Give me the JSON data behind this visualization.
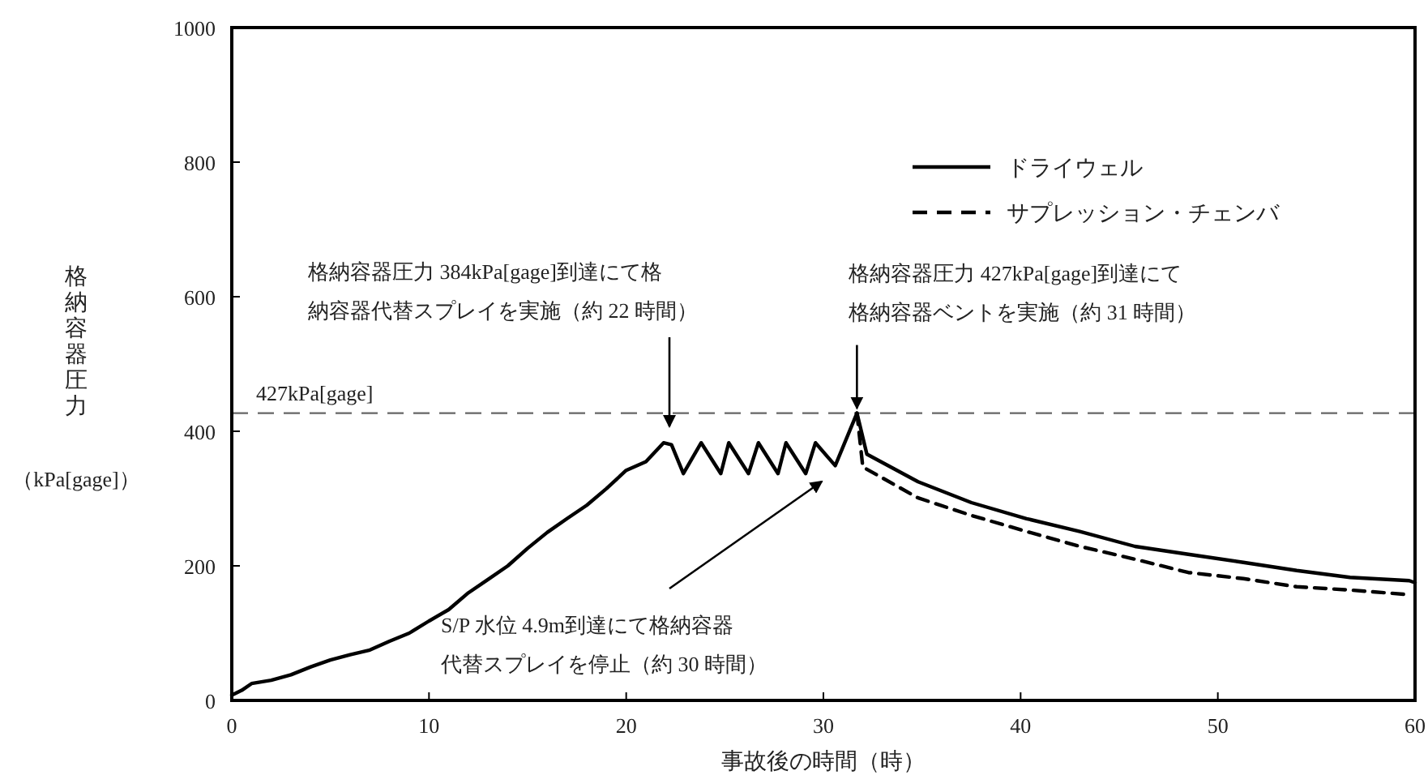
{
  "chart_data": {
    "type": "line",
    "xlabel": "事故後の時間（時）",
    "ylabel": "格納容器圧力（kPa[gage]）",
    "xlim": [
      0,
      60
    ],
    "ylim": [
      0,
      1000
    ],
    "xticks": [
      0,
      10,
      20,
      30,
      40,
      50,
      60
    ],
    "yticks": [
      0,
      200,
      400,
      600,
      800,
      1000
    ],
    "legend": "top right",
    "grid": false,
    "series": [
      {
        "name": "ドライウェル",
        "color": "#000000",
        "line_style": "solid",
        "x": [
          0,
          0.5,
          1,
          2,
          3,
          4,
          5,
          6,
          7,
          8,
          9,
          10,
          11,
          12,
          13,
          14,
          15,
          16,
          17,
          18,
          19,
          20,
          21,
          21.9,
          22.3,
          22.9,
          23.8,
          24.8,
          25.2,
          26.2,
          26.7,
          27.7,
          28.1,
          29.1,
          29.6,
          30.6,
          31.7,
          32.2,
          34.8,
          37.5,
          40.3,
          43,
          45.8,
          48.5,
          51.3,
          54,
          56.7,
          59.7,
          60
        ],
        "values": [
          8,
          15,
          25,
          30,
          38,
          50,
          60,
          68,
          75,
          88,
          100,
          118,
          135,
          160,
          180,
          200,
          226,
          250,
          270,
          290,
          315,
          342,
          355,
          383,
          380,
          337,
          383,
          337,
          383,
          337,
          383,
          337,
          383,
          337,
          383,
          349,
          427,
          366,
          325,
          294,
          270,
          251,
          229,
          217,
          205,
          193,
          183,
          178,
          175
        ]
      },
      {
        "name": "サプレッション・チェンバ",
        "color": "#000000",
        "line_style": "dashed",
        "x": [
          31.7,
          32,
          34.8,
          37.5,
          40.3,
          43,
          45.8,
          48.5,
          51.3,
          54,
          56.7,
          59.7
        ],
        "values": [
          427,
          347,
          301,
          275,
          251,
          229,
          210,
          190,
          181,
          169,
          164,
          157
        ]
      }
    ],
    "ref_lines": [
      {
        "axis": "y",
        "value": 427,
        "label": "427kPa[gage]",
        "color": "#666666",
        "line_style": "dashed"
      }
    ],
    "annotations": [
      "格納容器圧力 384kPa[gage]到達にて格納容器代替スプレイを実施（約 22 時間）",
      {
        "text": "格納容器圧力 427kPa[gage]到達にて格納容器ベントを実施（約 31 時間）",
        "x": 31.7,
        "y": 427
      },
      "S/P 水位 4.9m到達にて格納容器代替スプレイを停止（約 30 時間）"
    ]
  }
}
